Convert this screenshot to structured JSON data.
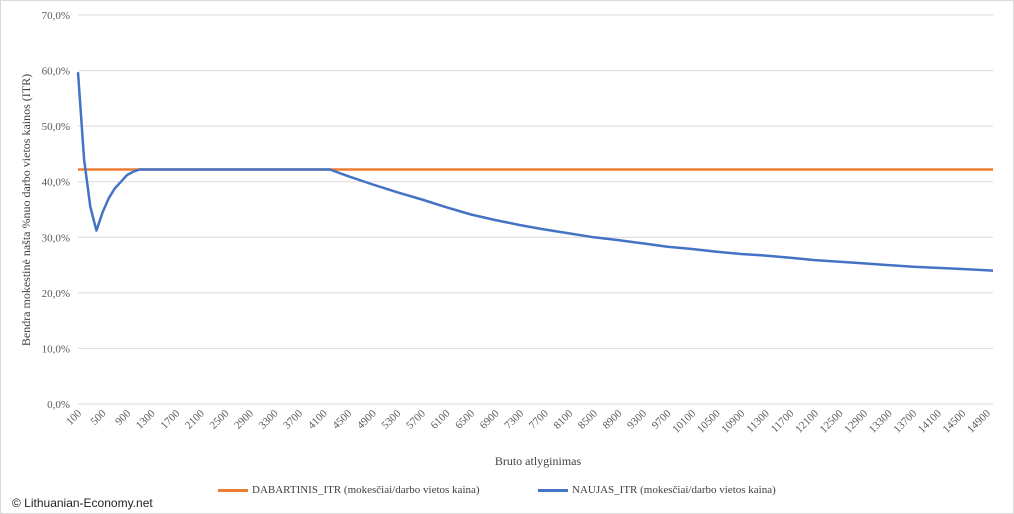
{
  "chart_data": {
    "type": "line",
    "xlabel": "Bruto atlyginimas",
    "ylabel": "Bendra mokestinė našta %nuo darbo vietos kainos (ITR)",
    "ylim": [
      0,
      70
    ],
    "yticks": [
      "0,0%",
      "10,0%",
      "20,0%",
      "30,0%",
      "40,0%",
      "50,0%",
      "60,0%",
      "70,0%"
    ],
    "grid": true,
    "legend_position": "bottom",
    "xticks": [
      "100",
      "500",
      "900",
      "1300",
      "1700",
      "2100",
      "2500",
      "2900",
      "3300",
      "3700",
      "4100",
      "4500",
      "4900",
      "5300",
      "5700",
      "6100",
      "6500",
      "6900",
      "7300",
      "7700",
      "8100",
      "8500",
      "8900",
      "9300",
      "9700",
      "10100",
      "10500",
      "10900",
      "11300",
      "11700",
      "12100",
      "12500",
      "12900",
      "13300",
      "13700",
      "14100",
      "14500",
      "14900"
    ],
    "series": [
      {
        "name": "DABARTINIS_ITR (mokesčiai/darbo vietos kaina)",
        "color": "#ed7d31",
        "x": [
          100,
          15000
        ],
        "y": [
          42.2,
          42.2
        ]
      },
      {
        "name": "NAUJAS_ITR (mokesčiai/darbo vietos kaina)",
        "color": "#4472c4",
        "x": [
          100,
          200,
          300,
          400,
          500,
          600,
          700,
          800,
          900,
          1000,
          1100,
          1200,
          1300,
          4200,
          4500,
          4900,
          5300,
          5700,
          6100,
          6500,
          6900,
          7300,
          7700,
          8100,
          8500,
          8900,
          9300,
          9700,
          10100,
          10500,
          10900,
          11300,
          11700,
          12100,
          12500,
          12900,
          13300,
          13700,
          14100,
          14500,
          15000
        ],
        "y": [
          59.7,
          44.0,
          35.5,
          31.2,
          34.5,
          37.0,
          38.8,
          40.0,
          41.2,
          41.8,
          42.2,
          42.2,
          42.2,
          42.2,
          41.0,
          39.5,
          38.1,
          36.8,
          35.4,
          34.1,
          33.1,
          32.2,
          31.4,
          30.7,
          30.0,
          29.5,
          28.9,
          28.3,
          27.9,
          27.4,
          27.0,
          26.7,
          26.3,
          25.9,
          25.6,
          25.3,
          25.0,
          24.7,
          24.5,
          24.3,
          24.0
        ]
      }
    ]
  },
  "credit": "© Lithuanian-Economy.net"
}
